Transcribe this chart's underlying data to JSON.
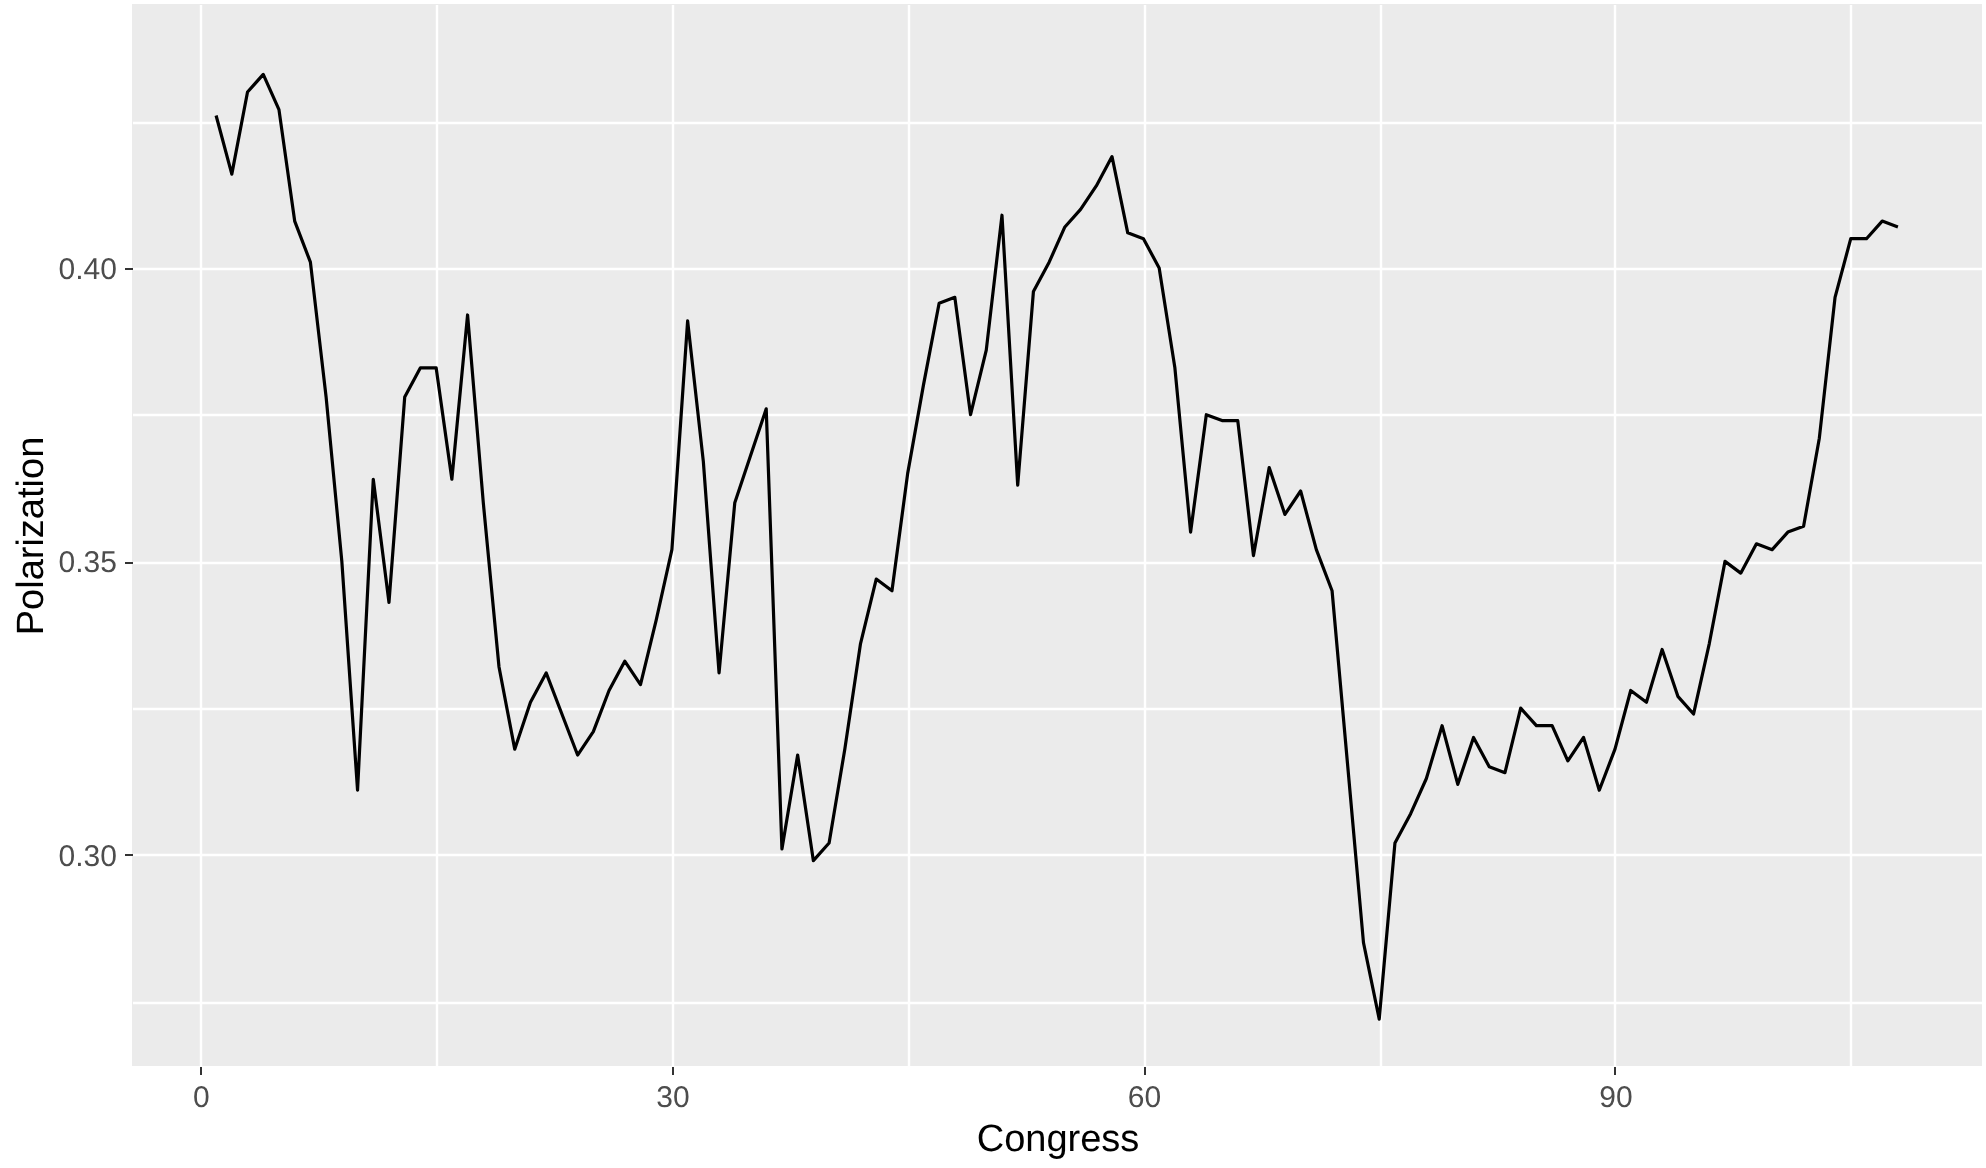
{
  "chart_data": {
    "type": "line",
    "xlabel": "Congress",
    "ylabel": "Polarization",
    "x": [
      1,
      2,
      3,
      4,
      5,
      6,
      7,
      8,
      9,
      10,
      11,
      12,
      13,
      14,
      15,
      16,
      17,
      18,
      19,
      20,
      21,
      22,
      23,
      24,
      25,
      26,
      27,
      28,
      29,
      30,
      31,
      32,
      33,
      34,
      35,
      36,
      37,
      38,
      39,
      40,
      41,
      42,
      43,
      44,
      45,
      46,
      47,
      48,
      49,
      50,
      51,
      52,
      53,
      54,
      55,
      56,
      57,
      58,
      59,
      60,
      61,
      62,
      63,
      64,
      65,
      66,
      67,
      68,
      69,
      70,
      71,
      72,
      73,
      74,
      75,
      76,
      77,
      78,
      79,
      80,
      81,
      82,
      83,
      84,
      85,
      86,
      87,
      88,
      89,
      90,
      91,
      92,
      93,
      94,
      95,
      96,
      97,
      98,
      99,
      100,
      101,
      102,
      103,
      104,
      105,
      106,
      107,
      108
    ],
    "series": [
      {
        "color": "#000000",
        "values": [
          0.426,
          0.416,
          0.43,
          0.433,
          0.427,
          0.408,
          0.401,
          0.378,
          0.35,
          0.311,
          0.364,
          0.343,
          0.378,
          0.383,
          0.383,
          0.364,
          0.392,
          0.36,
          0.332,
          0.318,
          0.326,
          0.331,
          0.324,
          0.317,
          0.321,
          0.328,
          0.333,
          0.329,
          0.34,
          0.352,
          0.391,
          0.367,
          0.331,
          0.36,
          0.368,
          0.376,
          0.301,
          0.317,
          0.299,
          0.302,
          0.318,
          0.336,
          0.347,
          0.345,
          0.365,
          0.38,
          0.394,
          0.395,
          0.375,
          0.386,
          0.409,
          0.363,
          0.396,
          0.401,
          0.407,
          0.41,
          0.414,
          0.419,
          0.406,
          0.405,
          0.4,
          0.383,
          0.355,
          0.375,
          0.374,
          0.374,
          0.351,
          0.366,
          0.358,
          0.362,
          0.352,
          0.345,
          0.315,
          0.285,
          0.272,
          0.302,
          0.307,
          0.313,
          0.322,
          0.312,
          0.32,
          0.315,
          0.314,
          0.325,
          0.322,
          0.322,
          0.316,
          0.32,
          0.311,
          0.318,
          0.328,
          0.326,
          0.335,
          0.327,
          0.324,
          0.336,
          0.35,
          0.348,
          0.353,
          0.352,
          0.355,
          0.356,
          0.371,
          0.395,
          0.405,
          0.405,
          0.408,
          0.407
        ]
      }
    ],
    "xlim": [
      -4.35,
      113.35
    ],
    "xticks": [
      0,
      {
        "value": 15,
        "label": null
      },
      30,
      {
        "value": 45,
        "label": null
      },
      60,
      {
        "value": 75,
        "label": null
      },
      90,
      {
        "value": 105,
        "label": null
      }
    ],
    "ylim": [
      0.264,
      0.445
    ],
    "yticks": [
      {
        "value": 0.275,
        "label": null
      },
      {
        "value": 0.3,
        "label": "0.30"
      },
      {
        "value": 0.325,
        "label": null
      },
      {
        "value": 0.35,
        "label": "0.35"
      },
      {
        "value": 0.375,
        "label": null
      },
      {
        "value": 0.4,
        "label": "0.40"
      },
      {
        "value": 0.425,
        "label": null
      }
    ],
    "grid": true
  }
}
